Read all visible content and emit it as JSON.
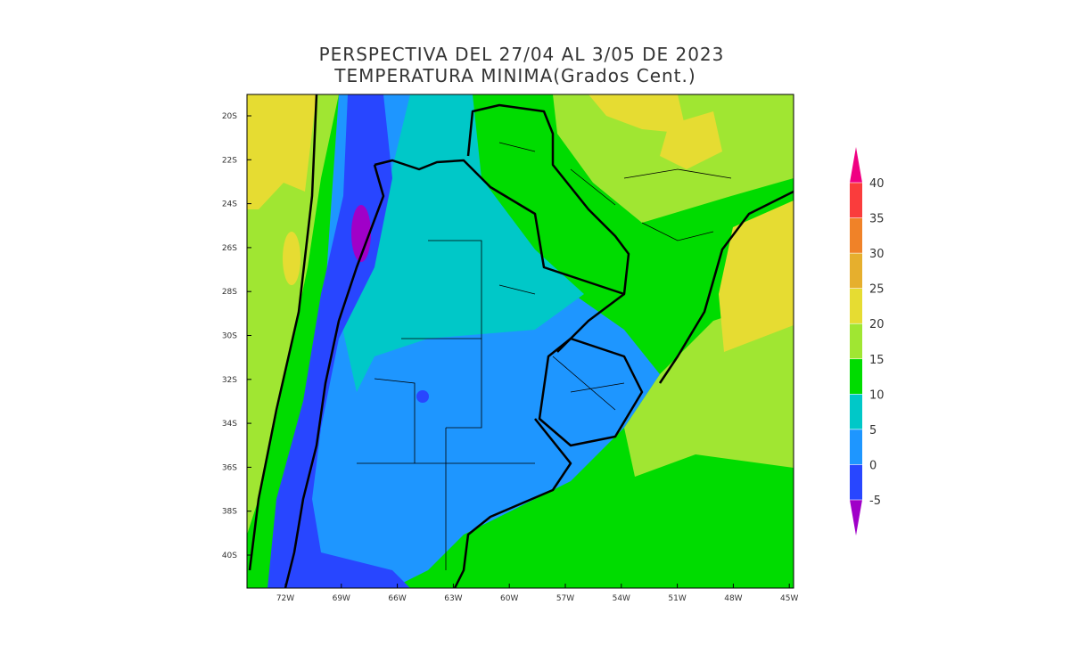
{
  "map": {
    "title": [
      "PERSPECTIVA DEL 27/04 AL 3/05 DE 2023",
      "TEMPERATURA MINIMA(Grados Cent.)"
    ],
    "lat_labels": [
      "20S",
      "22S",
      "24S",
      "26S",
      "28S",
      "30S",
      "32S",
      "34S",
      "36S",
      "38S",
      "40S"
    ],
    "lon_labels": [
      "72W",
      "69W",
      "66W",
      "63W",
      "60W",
      "57W",
      "54W",
      "51W",
      "48W",
      "45W"
    ],
    "colorbar": {
      "levels": [
        -5,
        0,
        5,
        10,
        15,
        20,
        25,
        30,
        35,
        40
      ],
      "colors": [
        "#a000c8",
        "#2846ff",
        "#1e96ff",
        "#00c8c8",
        "#00dc00",
        "#a0e632",
        "#e6dc32",
        "#e6af2d",
        "#f08228",
        "#fa3c3c",
        "#f00082"
      ]
    }
  }
}
